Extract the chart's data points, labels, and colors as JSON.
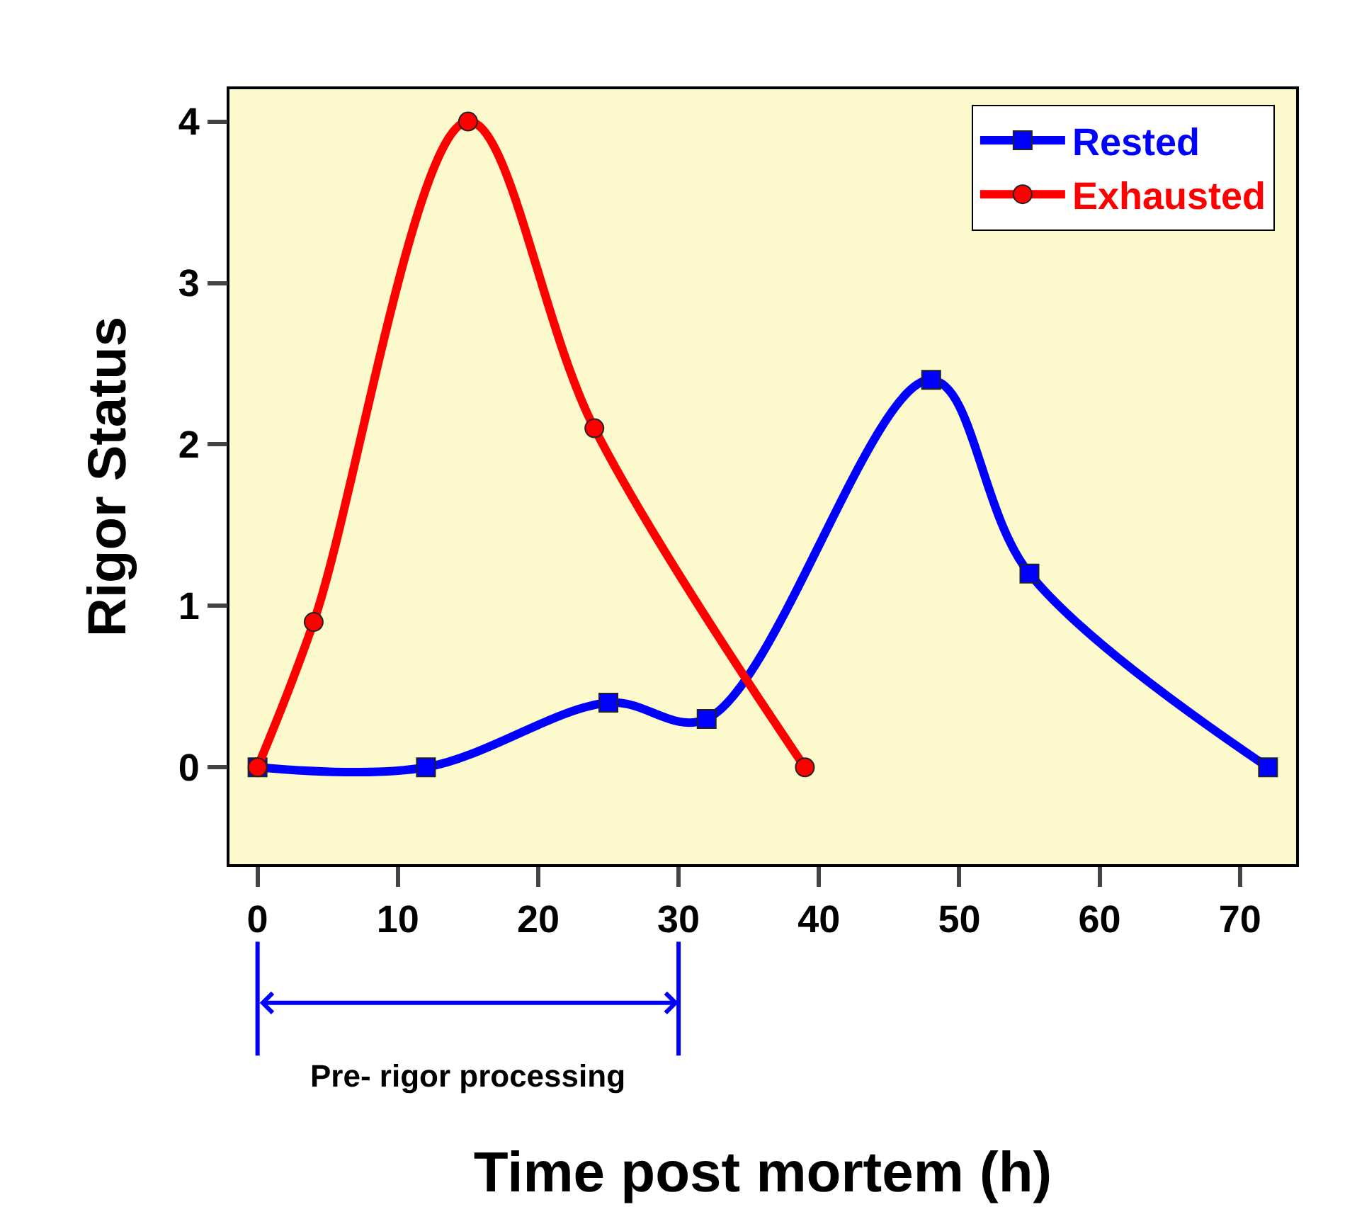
{
  "chart_data": {
    "type": "line",
    "xlabel": "Time post mortem (h)",
    "ylabel": "Rigor Status",
    "xlim": [
      -2,
      74
    ],
    "xticks": [
      0,
      10,
      20,
      30,
      40,
      50,
      60,
      70
    ],
    "ylim": [
      -0.6,
      4.2
    ],
    "yticks": [
      0,
      1,
      2,
      3,
      4
    ],
    "grid": false,
    "legend": "top right",
    "series": [
      {
        "name": "Rested",
        "color": "#0000ff",
        "marker": "square",
        "x": [
          0,
          12,
          25,
          32,
          48,
          55,
          72
        ],
        "values": [
          0,
          0,
          0.4,
          0.3,
          2.4,
          1.2,
          0
        ]
      },
      {
        "name": "Exhausted",
        "color": "#ff0000",
        "marker": "circle",
        "x": [
          0,
          4,
          15,
          24,
          39
        ],
        "values": [
          0,
          0.9,
          4,
          2.1,
          0
        ]
      }
    ],
    "annotations": [
      "Pre- rigor processing"
    ]
  }
}
